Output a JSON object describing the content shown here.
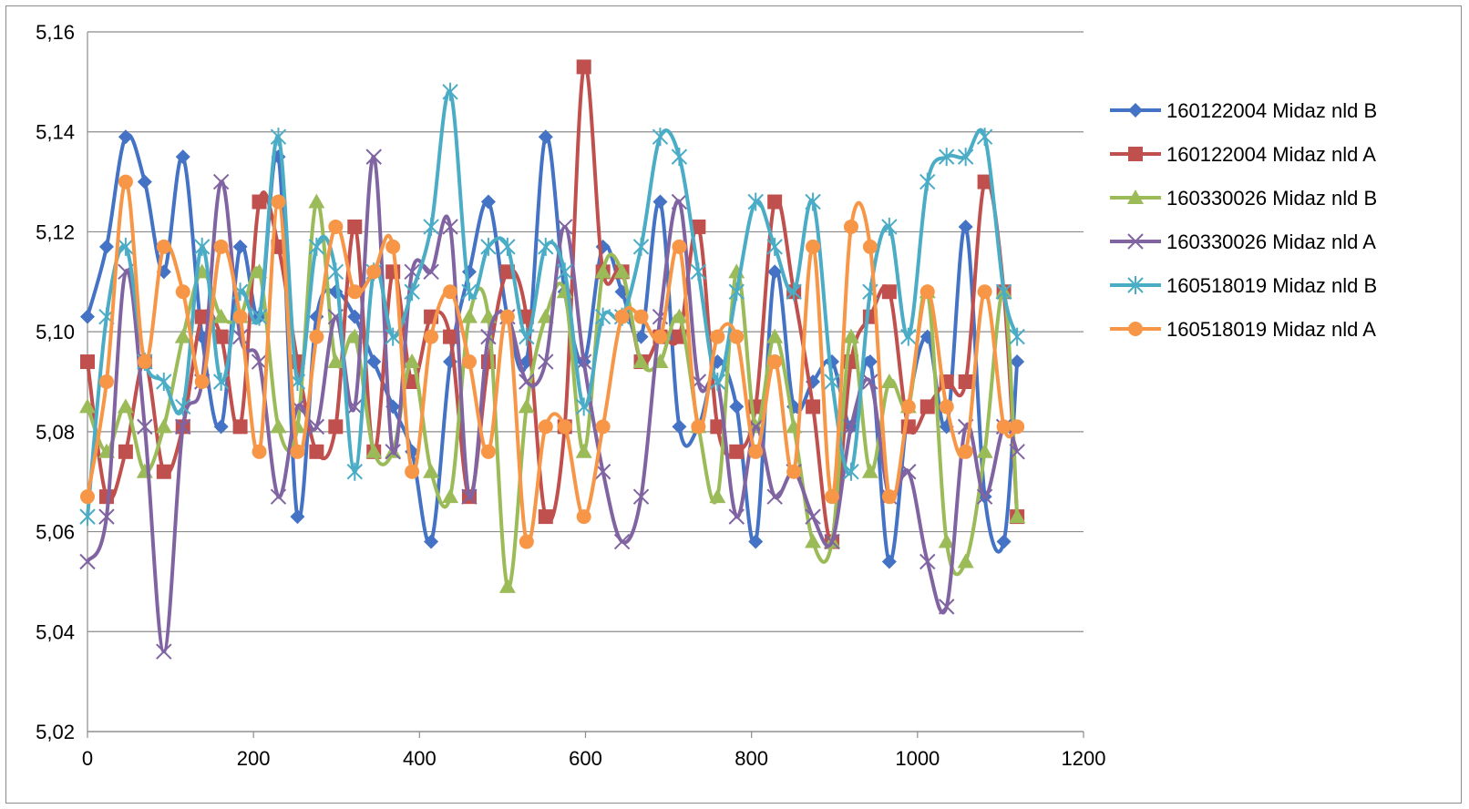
{
  "chart_data": {
    "type": "line",
    "title": "",
    "xlabel": "",
    "ylabel": "",
    "xlim": [
      0,
      1200
    ],
    "ylim": [
      5.02,
      5.16
    ],
    "xticks": [
      0,
      200,
      400,
      600,
      800,
      1000,
      1200
    ],
    "yticks": [
      "5,02",
      "5,04",
      "5,06",
      "5,08",
      "5,10",
      "5,12",
      "5,14",
      "5,16"
    ],
    "ytick_values": [
      5.02,
      5.04,
      5.06,
      5.08,
      5.1,
      5.12,
      5.14,
      5.16
    ],
    "grid": "horizontal",
    "smooth": true,
    "legend_position": "right",
    "series": [
      {
        "name": "160122004 Midaz nld B",
        "color": "#4472C4",
        "marker": "diamond",
        "x": [
          0,
          23,
          46,
          69,
          92,
          115,
          138,
          161,
          184,
          207,
          230,
          253,
          276,
          299,
          322,
          345,
          368,
          391,
          414,
          437,
          460,
          483,
          506,
          529,
          552,
          575,
          598,
          621,
          644,
          667,
          690,
          713,
          736,
          759,
          782,
          805,
          828,
          851,
          874,
          897,
          920,
          943,
          966,
          989,
          1012,
          1035,
          1058,
          1081,
          1104,
          1120
        ],
        "y": [
          5.103,
          5.117,
          5.139,
          5.13,
          5.112,
          5.135,
          5.099,
          5.081,
          5.117,
          5.103,
          5.135,
          5.063,
          5.103,
          5.108,
          5.103,
          5.094,
          5.085,
          5.076,
          5.058,
          5.094,
          5.112,
          5.126,
          5.103,
          5.094,
          5.139,
          5.108,
          5.094,
          5.117,
          5.108,
          5.099,
          5.126,
          5.081,
          5.081,
          5.094,
          5.085,
          5.058,
          5.112,
          5.085,
          5.09,
          5.094,
          5.081,
          5.094,
          5.054,
          5.085,
          5.099,
          5.081,
          5.121,
          5.067,
          5.058,
          5.094
        ]
      },
      {
        "name": "160122004 Midaz nld A",
        "color": "#C0504D",
        "marker": "square",
        "x": [
          0,
          23,
          46,
          69,
          92,
          115,
          138,
          161,
          184,
          207,
          230,
          253,
          276,
          299,
          322,
          345,
          368,
          391,
          414,
          437,
          460,
          483,
          506,
          529,
          552,
          575,
          598,
          621,
          644,
          667,
          690,
          713,
          736,
          759,
          782,
          805,
          828,
          851,
          874,
          897,
          920,
          943,
          966,
          989,
          1012,
          1035,
          1058,
          1081,
          1104,
          1120
        ],
        "y": [
          5.094,
          5.067,
          5.076,
          5.094,
          5.072,
          5.081,
          5.103,
          5.099,
          5.081,
          5.126,
          5.117,
          5.094,
          5.076,
          5.081,
          5.121,
          5.076,
          5.112,
          5.09,
          5.103,
          5.099,
          5.067,
          5.094,
          5.112,
          5.103,
          5.063,
          5.081,
          5.153,
          5.112,
          5.112,
          5.094,
          5.099,
          5.099,
          5.121,
          5.081,
          5.076,
          5.085,
          5.126,
          5.108,
          5.085,
          5.058,
          5.094,
          5.103,
          5.108,
          5.081,
          5.085,
          5.09,
          5.09,
          5.13,
          5.108,
          5.063
        ]
      },
      {
        "name": "160330026 Midaz nld B",
        "color": "#9BBB59",
        "marker": "triangle",
        "x": [
          0,
          23,
          46,
          69,
          92,
          115,
          138,
          161,
          184,
          207,
          230,
          253,
          276,
          299,
          322,
          345,
          368,
          391,
          414,
          437,
          460,
          483,
          506,
          529,
          552,
          575,
          598,
          621,
          644,
          667,
          690,
          713,
          736,
          759,
          782,
          805,
          828,
          851,
          874,
          897,
          920,
          943,
          966,
          989,
          1012,
          1035,
          1058,
          1081,
          1104,
          1120
        ],
        "y": [
          5.085,
          5.076,
          5.085,
          5.072,
          5.081,
          5.099,
          5.112,
          5.103,
          5.103,
          5.112,
          5.081,
          5.081,
          5.126,
          5.094,
          5.099,
          5.076,
          5.076,
          5.094,
          5.072,
          5.067,
          5.103,
          5.103,
          5.049,
          5.085,
          5.103,
          5.108,
          5.076,
          5.112,
          5.112,
          5.094,
          5.094,
          5.103,
          5.081,
          5.067,
          5.112,
          5.081,
          5.099,
          5.081,
          5.058,
          5.058,
          5.099,
          5.072,
          5.09,
          5.085,
          5.108,
          5.058,
          5.054,
          5.076,
          5.108,
          5.063
        ]
      },
      {
        "name": "160330026 Midaz nld A",
        "color": "#8064A2",
        "marker": "x",
        "x": [
          0,
          23,
          46,
          69,
          92,
          115,
          138,
          161,
          184,
          207,
          230,
          253,
          276,
          299,
          322,
          345,
          368,
          391,
          414,
          437,
          460,
          483,
          506,
          529,
          552,
          575,
          598,
          621,
          644,
          667,
          690,
          713,
          736,
          759,
          782,
          805,
          828,
          851,
          874,
          897,
          920,
          943,
          966,
          989,
          1012,
          1035,
          1058,
          1081,
          1104,
          1120
        ],
        "y": [
          5.054,
          5.063,
          5.112,
          5.081,
          5.036,
          5.081,
          5.09,
          5.13,
          5.099,
          5.094,
          5.067,
          5.085,
          5.081,
          5.103,
          5.085,
          5.135,
          5.076,
          5.112,
          5.112,
          5.121,
          5.067,
          5.099,
          5.103,
          5.09,
          5.094,
          5.121,
          5.094,
          5.072,
          5.058,
          5.067,
          5.103,
          5.126,
          5.09,
          5.09,
          5.063,
          5.081,
          5.067,
          5.072,
          5.063,
          5.058,
          5.081,
          5.09,
          5.067,
          5.072,
          5.054,
          5.045,
          5.081,
          5.067,
          5.081,
          5.076
        ]
      },
      {
        "name": "160518019 Midaz nld B",
        "color": "#4BACC6",
        "marker": "star",
        "x": [
          0,
          23,
          46,
          69,
          92,
          115,
          138,
          161,
          184,
          207,
          230,
          253,
          276,
          299,
          322,
          345,
          368,
          391,
          414,
          437,
          460,
          483,
          506,
          529,
          552,
          575,
          598,
          621,
          644,
          667,
          690,
          713,
          736,
          759,
          782,
          805,
          828,
          851,
          874,
          897,
          920,
          943,
          966,
          989,
          1012,
          1035,
          1058,
          1081,
          1104,
          1120
        ],
        "y": [
          5.063,
          5.103,
          5.117,
          5.094,
          5.09,
          5.085,
          5.117,
          5.09,
          5.108,
          5.103,
          5.139,
          5.09,
          5.117,
          5.112,
          5.072,
          5.112,
          5.099,
          5.108,
          5.121,
          5.148,
          5.108,
          5.117,
          5.117,
          5.099,
          5.117,
          5.112,
          5.085,
          5.103,
          5.103,
          5.117,
          5.139,
          5.135,
          5.112,
          5.09,
          5.108,
          5.126,
          5.117,
          5.108,
          5.126,
          5.09,
          5.072,
          5.108,
          5.121,
          5.099,
          5.13,
          5.135,
          5.135,
          5.139,
          5.108,
          5.099
        ]
      },
      {
        "name": "160518019 Midaz nld A",
        "color": "#F79646",
        "marker": "circle",
        "x": [
          0,
          23,
          46,
          69,
          92,
          115,
          138,
          161,
          184,
          207,
          230,
          253,
          276,
          299,
          322,
          345,
          368,
          391,
          414,
          437,
          460,
          483,
          506,
          529,
          552,
          575,
          598,
          621,
          644,
          667,
          690,
          713,
          736,
          759,
          782,
          805,
          828,
          851,
          874,
          897,
          920,
          943,
          966,
          989,
          1012,
          1035,
          1058,
          1081,
          1104,
          1120
        ],
        "y": [
          5.067,
          5.09,
          5.13,
          5.094,
          5.117,
          5.108,
          5.09,
          5.117,
          5.103,
          5.076,
          5.126,
          5.076,
          5.099,
          5.121,
          5.108,
          5.112,
          5.117,
          5.072,
          5.099,
          5.108,
          5.094,
          5.076,
          5.103,
          5.058,
          5.081,
          5.081,
          5.063,
          5.081,
          5.103,
          5.103,
          5.099,
          5.117,
          5.081,
          5.099,
          5.099,
          5.076,
          5.094,
          5.072,
          5.117,
          5.067,
          5.121,
          5.117,
          5.067,
          5.085,
          5.108,
          5.085,
          5.076,
          5.108,
          5.081,
          5.081
        ]
      }
    ]
  }
}
